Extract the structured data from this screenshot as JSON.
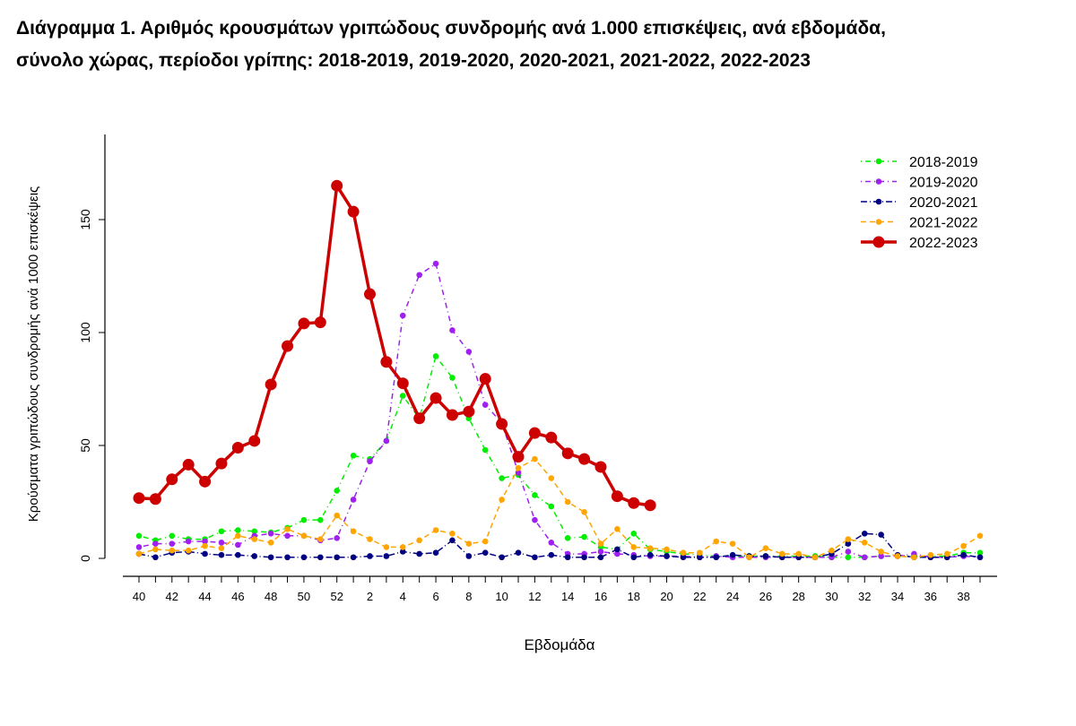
{
  "chart_data": {
    "type": "line",
    "title_line1": "Διάγραμμα 1. Αριθμός κρουσμάτων γριπώδους συνδρομής ανά 1.000 επισκέψεις, ανά εβδομάδα,",
    "title_line2": "σύνολο χώρας, περίοδοι γρίπης: 2018-2019, 2019-2020, 2020-2021, 2021-2022, 2022-2023",
    "xlabel": "Εβδομάδα",
    "ylabel": "Κρούσματα γριπώδους συνδρομής ανά 1000 επισκέψεις",
    "ylim": [
      0,
      180
    ],
    "yticks": [
      0,
      50,
      100,
      150
    ],
    "x": [
      40,
      41,
      42,
      43,
      44,
      45,
      46,
      47,
      48,
      49,
      50,
      51,
      52,
      1,
      2,
      3,
      4,
      5,
      6,
      7,
      8,
      9,
      10,
      11,
      12,
      13,
      14,
      15,
      16,
      17,
      18,
      19,
      20,
      21,
      22,
      23,
      24,
      25,
      26,
      27,
      28,
      29,
      30,
      31,
      32,
      33,
      34,
      35,
      36,
      37,
      38,
      39
    ],
    "xtick_labels": [
      "40",
      "42",
      "44",
      "46",
      "48",
      "50",
      "52",
      "2",
      "4",
      "6",
      "8",
      "10",
      "12",
      "14",
      "16",
      "18",
      "20",
      "22",
      "24",
      "26",
      "28",
      "30",
      "32",
      "34",
      "36",
      "38"
    ],
    "legend_position": "top-right",
    "series": [
      {
        "name": "2018-2019",
        "color": "#00ee00",
        "style": "dotdash",
        "values": [
          10,
          8,
          10,
          8.5,
          8.5,
          12,
          12.5,
          12,
          11.5,
          13.5,
          17,
          17,
          30,
          45.5,
          44,
          52,
          72,
          62,
          89.5,
          80,
          62,
          48,
          35.5,
          37,
          28,
          23,
          9,
          9.5,
          5,
          4,
          11,
          4,
          3,
          2,
          1.5,
          1,
          1,
          1,
          1,
          1,
          1,
          1,
          0.5,
          0.5,
          0.5,
          1,
          1,
          1,
          1,
          1,
          2.5,
          2.5
        ]
      },
      {
        "name": "2019-2020",
        "color": "#a020f0",
        "style": "dotdash",
        "values": [
          5,
          6.5,
          6.5,
          7.5,
          7.5,
          7,
          6,
          10,
          11,
          10,
          10,
          8,
          9,
          26,
          43,
          52,
          107.5,
          125.5,
          130.5,
          101,
          91.5,
          68,
          60,
          38,
          17,
          7,
          2,
          2,
          3,
          2,
          1.5,
          1,
          1,
          1,
          0.5,
          1,
          0.5,
          0.5,
          0.5,
          0.5,
          0.5,
          0.5,
          0.5,
          3,
          0.5,
          1,
          1,
          2,
          0.5,
          0.5,
          1,
          0.5
        ]
      },
      {
        "name": "2020-2021",
        "color": "#000080",
        "style": "dashdot",
        "values": [
          2,
          0.5,
          2.5,
          3,
          2,
          1.5,
          1.5,
          1,
          0.5,
          0.5,
          0.5,
          0.5,
          0.5,
          0.5,
          1,
          1,
          3,
          2,
          2.5,
          8,
          1,
          2.5,
          0.5,
          2.5,
          0.5,
          1.5,
          0.5,
          0.5,
          0.5,
          4,
          0.5,
          1.5,
          1,
          0.5,
          0.5,
          0.5,
          1.5,
          1,
          1,
          0.5,
          0.5,
          0.5,
          2,
          6.5,
          11,
          10.5,
          1.5,
          0.5,
          0.5,
          0.5,
          1.5,
          0.5
        ]
      },
      {
        "name": "2021-2022",
        "color": "#ffa500",
        "style": "dashed",
        "values": [
          2,
          4,
          3.5,
          3.5,
          5.5,
          4.5,
          10,
          8.5,
          7,
          13,
          10,
          8.5,
          19,
          12,
          8.5,
          5,
          5,
          8,
          12.5,
          11,
          6.5,
          7.5,
          26,
          40,
          44,
          35.5,
          25,
          20.5,
          6.5,
          13,
          5,
          4.5,
          4,
          2.5,
          2.5,
          7.5,
          6.5,
          0.5,
          4.5,
          2,
          2,
          0.5,
          3.5,
          8.5,
          7,
          3,
          1,
          0.5,
          1.5,
          2,
          5.5,
          10
        ]
      },
      {
        "name": "2022-2023",
        "color": "#cc0000",
        "style": "solid",
        "values": [
          26.7,
          26.3,
          35,
          41.5,
          34,
          42,
          49,
          52,
          77,
          94,
          104,
          104.5,
          165,
          153.5,
          117,
          87,
          77.5,
          62,
          71,
          63.5,
          65,
          79.5,
          59.5,
          45,
          55.5,
          53.5,
          46.5,
          44,
          40.5,
          27.5,
          24.5,
          23.5,
          null,
          null,
          null,
          null,
          null,
          null,
          null,
          null,
          null,
          null,
          null,
          null,
          null,
          null,
          null,
          null,
          null,
          null,
          null,
          null
        ]
      }
    ]
  }
}
